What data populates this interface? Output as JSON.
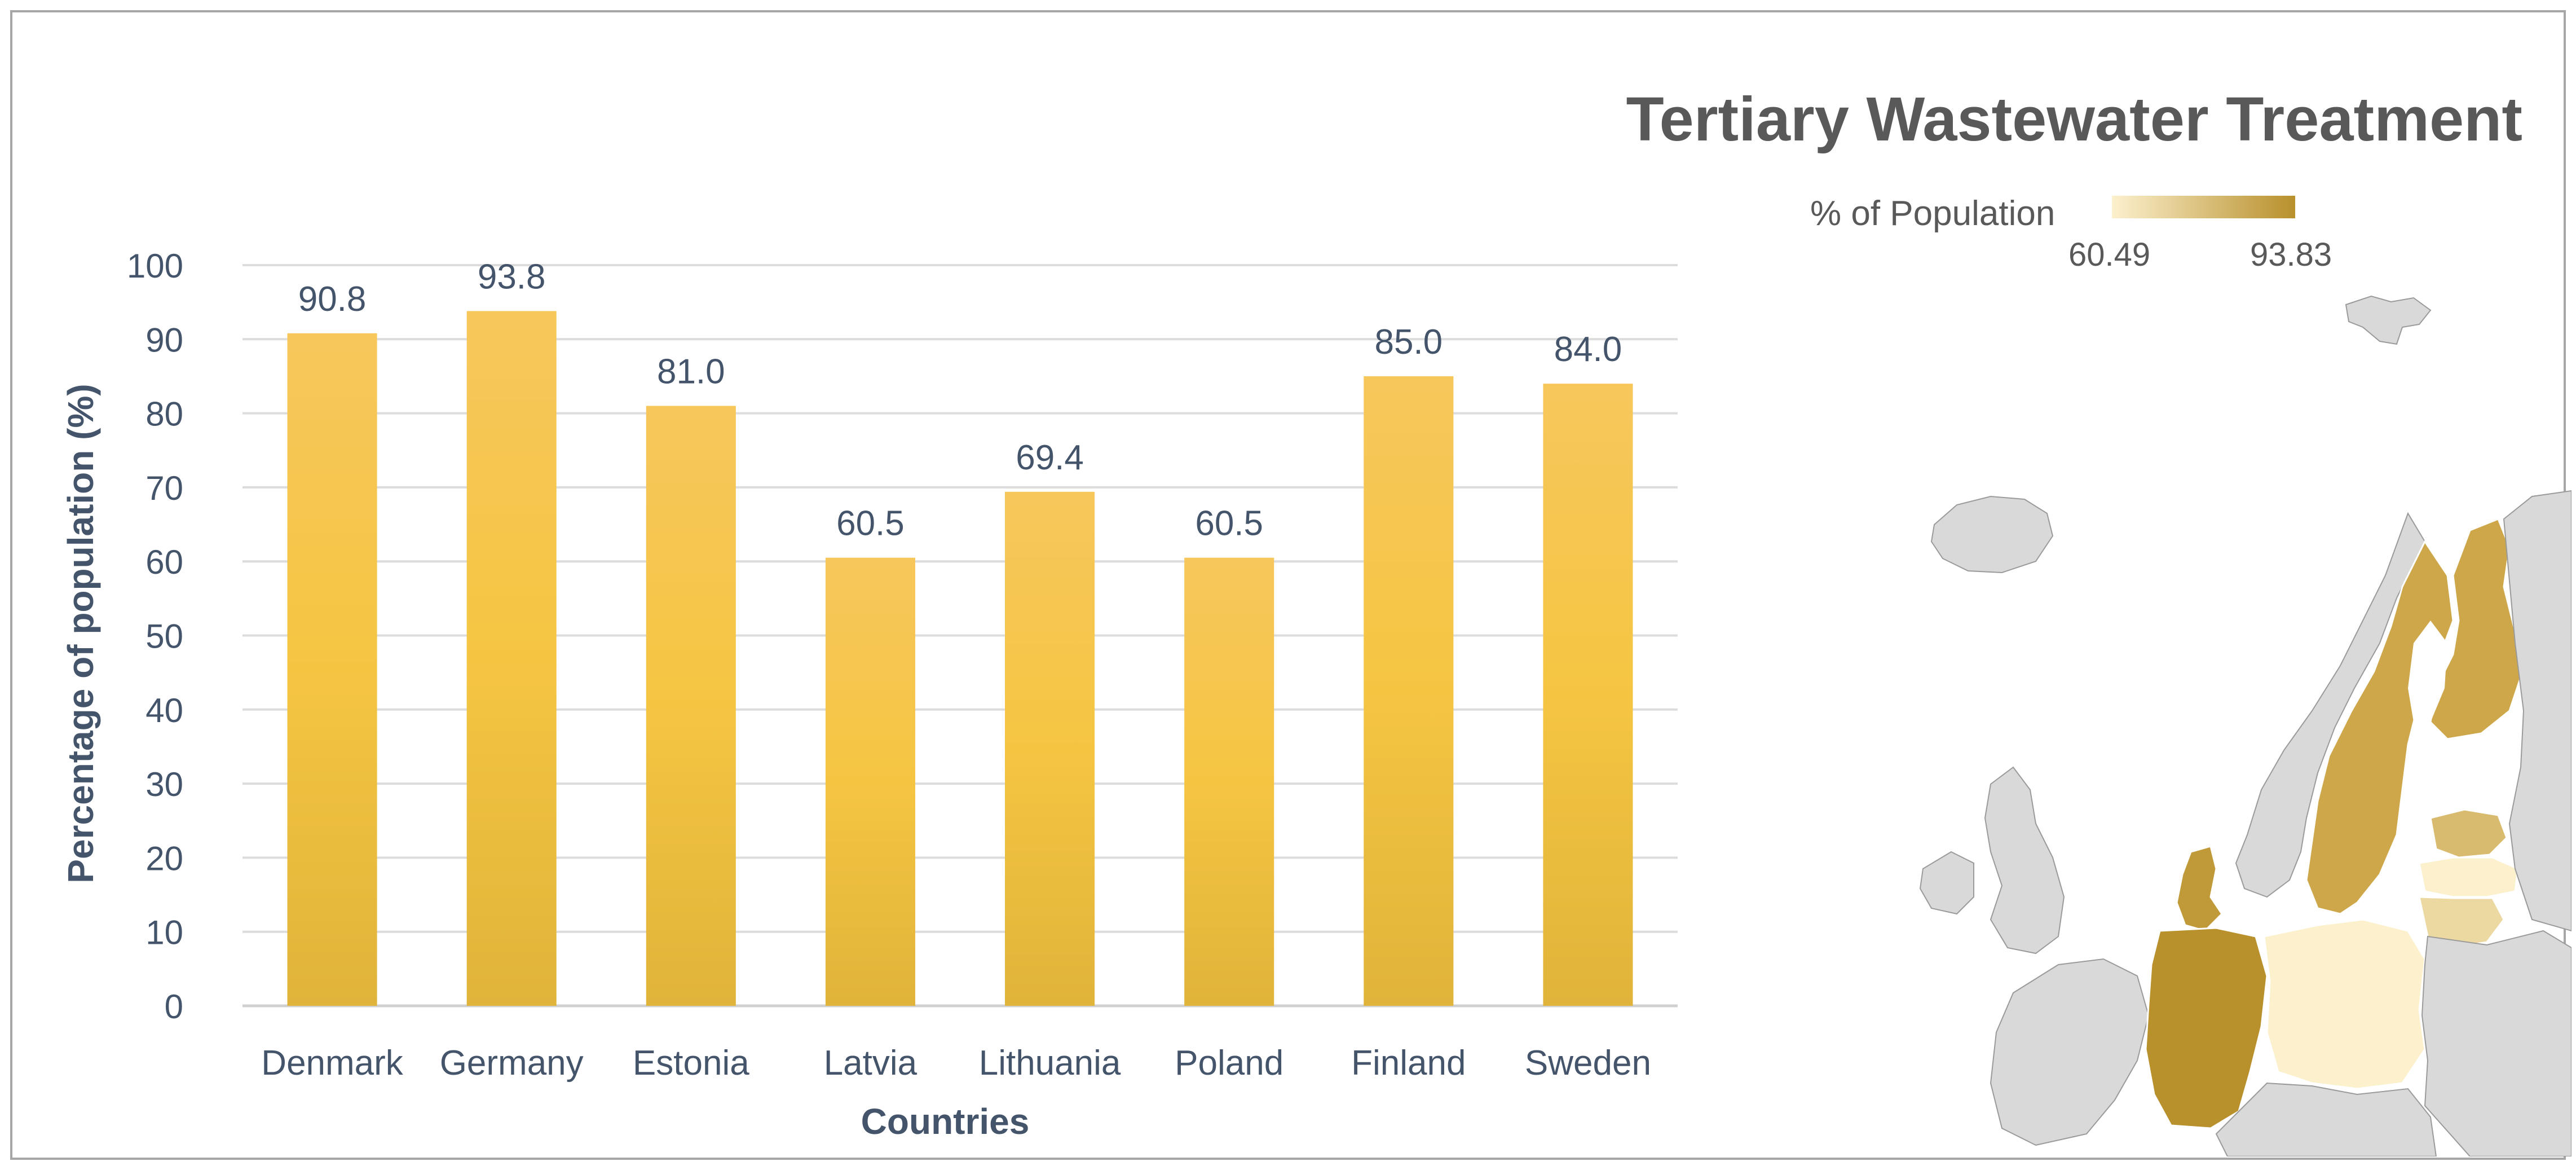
{
  "chart_data": {
    "type": "bar",
    "categories": [
      "Denmark",
      "Germany",
      "Estonia",
      "Latvia",
      "Lithuania",
      "Poland",
      "Finland",
      "Sweden"
    ],
    "values": [
      90.8,
      93.8,
      81.0,
      60.5,
      69.4,
      60.5,
      85.0,
      84.0
    ],
    "data_labels": [
      "90.8",
      "93.8",
      "81.0",
      "60.5",
      "69.4",
      "60.5",
      "85.0",
      "84.0"
    ],
    "title": "",
    "xlabel": "Countries",
    "ylabel": "Percentage of population (%)",
    "ylim": [
      0,
      100
    ],
    "yticks": [
      "0",
      "10",
      "20",
      "30",
      "40",
      "50",
      "60",
      "70",
      "80",
      "90",
      "100"
    ],
    "grid": true,
    "bar_color_top": "#f7c75c",
    "bar_color_mid": "#f5c542",
    "bar_color_bottom": "#e0b43a"
  },
  "map": {
    "title": "Tertiary Wastewater Treatment",
    "legend_label": "% of Population",
    "legend_min": "60.49",
    "legend_max": "93.83",
    "color_low": "#fcf0cd",
    "color_high": "#b8902c",
    "base_color": "#d9d9d9"
  }
}
